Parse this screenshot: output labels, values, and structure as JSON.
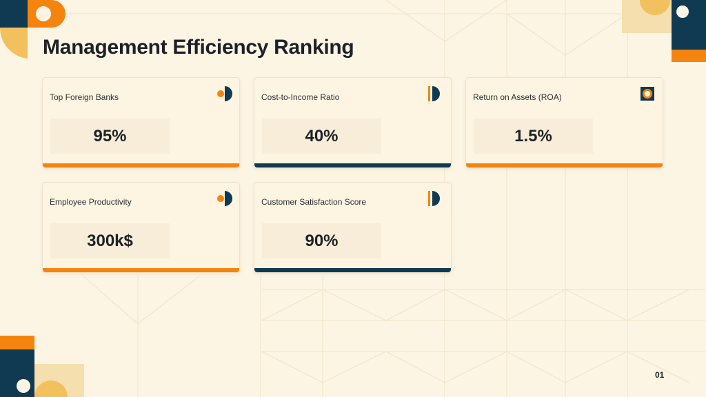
{
  "slide": {
    "title": "Management Efficiency Ranking",
    "page_number": "01"
  },
  "colors": {
    "navy": "#0f3a52",
    "orange": "#f5840f",
    "gold": "#f2c15e",
    "background": "#fdf5e4"
  },
  "cards": [
    {
      "label": "Top Foreign Banks",
      "value": "95%",
      "accent": "orange",
      "icon": "dot-half-circle-icon"
    },
    {
      "label": "Cost-to-Income Ratio",
      "value": "40%",
      "accent": "navy",
      "icon": "bar-half-circle-icon"
    },
    {
      "label": "Return on Assets (ROA)",
      "value": "1.5%",
      "accent": "orange",
      "icon": "ring-square-icon"
    },
    {
      "label": "Employee Productivity",
      "value": "300k$",
      "accent": "orange",
      "icon": "dot-half-circle-icon"
    },
    {
      "label": "Customer Satisfaction Score",
      "value": "90%",
      "accent": "navy",
      "icon": "bar-half-circle-icon"
    }
  ]
}
